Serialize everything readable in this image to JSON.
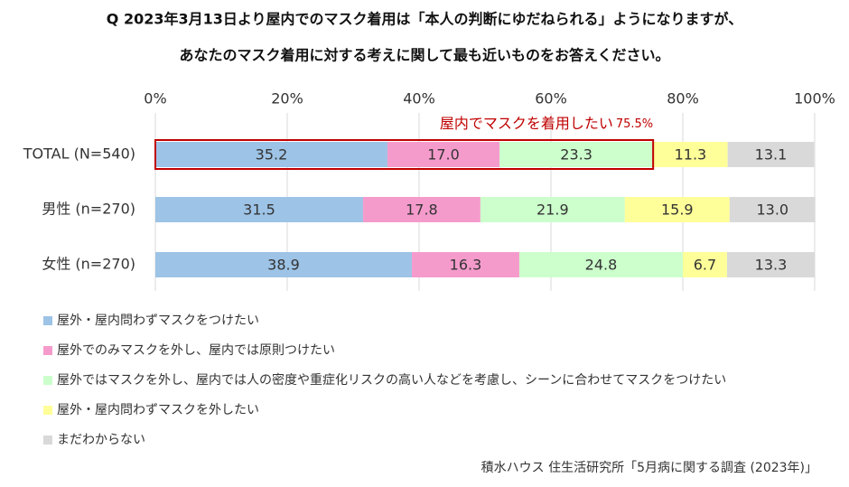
{
  "chart_data": {
    "type": "stacked-bar-horizontal",
    "title": [
      "Q 2023年3月13日より屋内でのマスク着用は「本人の判断にゆだねられる」ようになりますが、",
      "あなたのマスク着用に対する考えに関して最も近いものをお答えください。"
    ],
    "categories": [
      "TOTAL (N=540)",
      "男性 (n=270)",
      "女性 (n=270)"
    ],
    "series": [
      {
        "name": "屋外・屋内問わずマスクをつけたい",
        "color": "#9dc3e6",
        "values": [
          35.2,
          31.5,
          38.9
        ]
      },
      {
        "name": "屋外でのみマスクを外し、屋内では原則つけたい",
        "color": "#f59bcc",
        "values": [
          17.0,
          17.8,
          16.3
        ],
        "value_labels": [
          "17.0",
          "17.8",
          "16.3"
        ]
      },
      {
        "name": "屋外ではマスクを外し、屋内では人の密度や重症化リスクの高い人などを考慮し、シーンに合わせてマスクをつけたい",
        "color": "#ccffcc",
        "values": [
          23.3,
          21.9,
          24.8
        ]
      },
      {
        "name": "屋外・屋内問わずマスクを外したい",
        "color": "#ffff99",
        "values": [
          11.3,
          15.9,
          6.7
        ]
      },
      {
        "name": "まだわからない",
        "color": "#d9d9d9",
        "values": [
          13.1,
          13.0,
          13.3
        ],
        "value_labels": [
          "13.1",
          "13.0",
          "13.3"
        ]
      }
    ],
    "xlim": [
      0,
      100
    ],
    "xticks": [
      {
        "value": 0,
        "label": "0%"
      },
      {
        "value": 20,
        "label": "20%"
      },
      {
        "value": 40,
        "label": "40%"
      },
      {
        "value": 60,
        "label": "60%"
      },
      {
        "value": 80,
        "label": "80%"
      },
      {
        "value": 100,
        "label": "100%"
      }
    ],
    "grid": true,
    "annotation": {
      "text": "屋内でマスクを着用したい",
      "value": 75.5,
      "label": "75.5%",
      "color": "#c00000"
    },
    "source": "積水ハウス 住生活研究所「5月病に関する調査 (2023年)」"
  }
}
